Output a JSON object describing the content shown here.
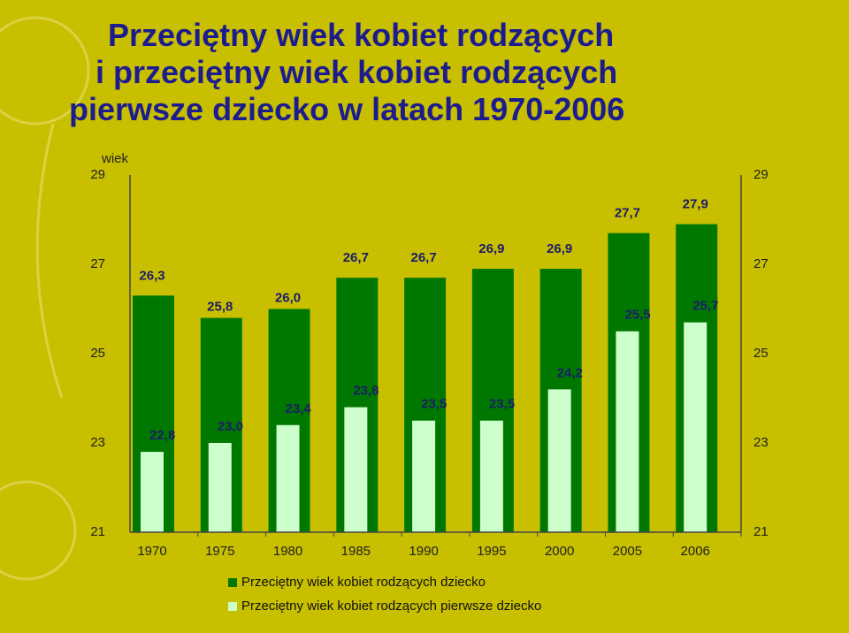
{
  "chart_data": {
    "type": "bar",
    "title_lines": [
      "Przeciętny wiek kobiet rodzących",
      "i przeciętny wiek kobiet rodzących",
      "pierwsze dziecko w latach 1970-2006"
    ],
    "y_label": "wiek",
    "categories": [
      "1970",
      "1975",
      "1980",
      "1985",
      "1990",
      "1995",
      "2000",
      "2005",
      "2006"
    ],
    "series": [
      {
        "name": "Przeciętny wiek kobiet rodzących dziecko",
        "color": "#007800",
        "values": [
          26.3,
          25.8,
          26.0,
          26.7,
          26.7,
          26.9,
          26.9,
          27.7,
          27.9
        ],
        "value_labels": [
          "26,3",
          "25,8",
          "26,0",
          "26,7",
          "26,7",
          "26,9",
          "26,9",
          "27,7",
          "27,9"
        ]
      },
      {
        "name": "Przeciętny wiek kobiet rodzących pierwsze dziecko",
        "color": "#ccffcc",
        "values": [
          22.8,
          23.0,
          23.4,
          23.8,
          23.5,
          23.5,
          24.2,
          25.5,
          25.7
        ],
        "value_labels": [
          "22,8",
          "23,0",
          "23,4",
          "23,8",
          "23,5",
          "23,5",
          "24,2",
          "25,5",
          "25,7"
        ]
      }
    ],
    "ylim": [
      21,
      29
    ],
    "yticks": [
      21,
      23,
      25,
      27,
      29
    ],
    "y2lim": [
      21,
      29
    ],
    "y2ticks": [
      21,
      23,
      25,
      27,
      29
    ]
  }
}
